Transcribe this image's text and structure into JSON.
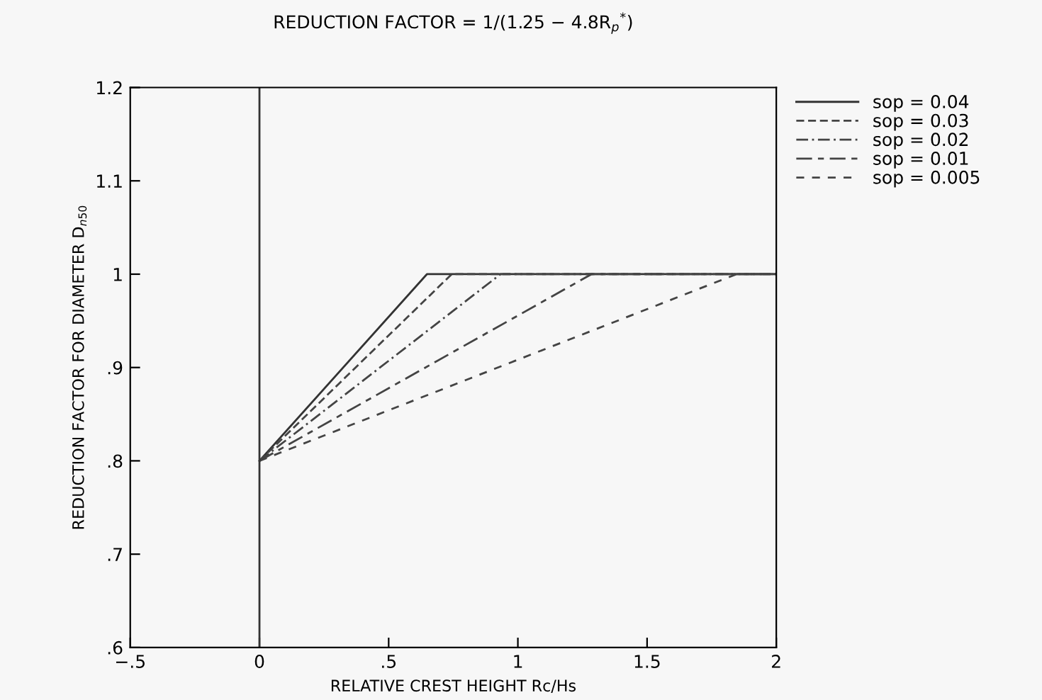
{
  "chart_data": {
    "type": "line",
    "title": "REDUCTION FACTOR = 1/(1.25 − 4.8R$_{p}$$^{*}$)",
    "xlabel": "RELATIVE CREST HEIGHT Rc/Hs",
    "ylabel": "REDUCTION FACTOR FOR DIAMETER D$_{n50}$",
    "xlim": [
      -0.5,
      2
    ],
    "xticks": [
      {
        "value": -0.5,
        "label": "−.5"
      },
      0,
      {
        "value": 0.5,
        "label": ".5"
      },
      1,
      1.5,
      2
    ],
    "ylim": [
      0.6,
      1.2
    ],
    "yticks": [
      {
        "value": 0.6,
        "label": ".6"
      },
      {
        "value": 0.7,
        "label": ".7"
      },
      {
        "value": 0.8,
        "label": ".8"
      },
      {
        "value": 0.9,
        "label": ".9"
      },
      1,
      1.1,
      1.2
    ],
    "grid": false,
    "legend": "top right",
    "marker": "none",
    "ref_lines": [
      {
        "axis": "x",
        "value": 0,
        "color": "#333333"
      }
    ],
    "series": [
      {
        "name": "sop = 0.04",
        "color": "#333333",
        "line_style": "solid",
        "x": [
          0,
          0.648,
          2
        ],
        "values": [
          0.8,
          1,
          1
        ]
      },
      {
        "name": "sop = 0.03",
        "color": "#444444",
        "line_style": "dashed",
        "x": [
          0,
          0.744,
          2
        ],
        "values": [
          0.8,
          1,
          1
        ]
      },
      {
        "name": "sop = 0.02",
        "color": "#444444",
        "line_style": "dashdot",
        "x": [
          0,
          0.933,
          2
        ],
        "values": [
          0.8,
          1,
          1
        ]
      },
      {
        "name": "sop = 0.01",
        "color": "#444444",
        "line_style": "longdash",
        "x": [
          0,
          1.285,
          2
        ],
        "values": [
          0.8,
          1,
          1
        ]
      },
      {
        "name": "sop = 0.005",
        "color": "#444444",
        "line_style": "sparse",
        "x": [
          0,
          1.846,
          2
        ],
        "values": [
          0.8,
          1,
          1
        ]
      }
    ]
  }
}
